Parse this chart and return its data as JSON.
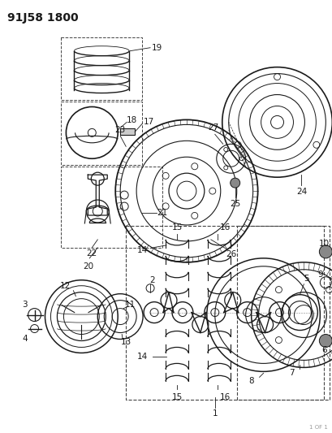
{
  "title": "91J58 1800",
  "bg_color": "#ffffff",
  "line_color": "#1a1a1a",
  "dashed_color": "#444444",
  "title_fontsize": 10,
  "fig_width": 4.1,
  "fig_height": 5.33,
  "dpi": 100
}
